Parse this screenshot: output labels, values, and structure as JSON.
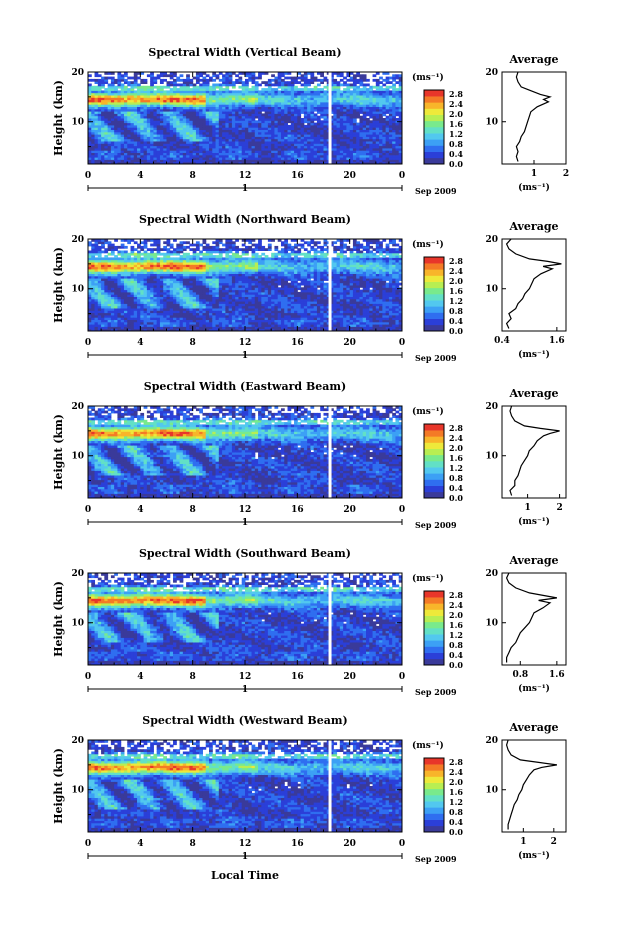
{
  "figure": {
    "xlabel": "Local Time",
    "date_label": "Sep 2009",
    "day_label": "1",
    "colorbar_unit": "(ms⁻¹)",
    "avg_title": "Average",
    "avg_unit": "(ms⁻¹)"
  },
  "colors": {
    "colormap": [
      "#3a3a9a",
      "#2b3fd8",
      "#2f6ef0",
      "#3ca0f5",
      "#52c8ef",
      "#62e0c6",
      "#79ea8c",
      "#b8ee52",
      "#eee93a",
      "#f8b52a",
      "#f47a26",
      "#e8362a"
    ],
    "gap": "#ffffff"
  },
  "chart_data": [
    {
      "type": "heatmap",
      "title": "Spectral Width (Vertical Beam)",
      "ylabel": "Height (km)",
      "xlim": [
        0,
        24
      ],
      "ylim": [
        1.5,
        20
      ],
      "xticks": [
        "0",
        "4",
        "8",
        "12",
        "16",
        "20",
        "0"
      ],
      "yticks": [
        "10",
        "20"
      ],
      "colorbar_ticks": [
        "2.8",
        "2.4",
        "2.0",
        "1.6",
        "1.2",
        "0.8",
        "0.4",
        "0.0"
      ],
      "gap_hour": 18.5,
      "average": {
        "xlim": [
          0,
          2
        ],
        "xticks": [
          "1",
          "2"
        ],
        "profile": [
          [
            0.5,
            2
          ],
          [
            0.45,
            3
          ],
          [
            0.5,
            4
          ],
          [
            0.45,
            5
          ],
          [
            0.55,
            6
          ],
          [
            0.6,
            7
          ],
          [
            0.7,
            8
          ],
          [
            0.75,
            9
          ],
          [
            0.8,
            10
          ],
          [
            0.85,
            11
          ],
          [
            0.9,
            12
          ],
          [
            1.1,
            13
          ],
          [
            1.45,
            14
          ],
          [
            1.3,
            14.5
          ],
          [
            1.5,
            15
          ],
          [
            1.2,
            15.5
          ],
          [
            1.0,
            16
          ],
          [
            0.8,
            16.5
          ],
          [
            0.6,
            17
          ],
          [
            0.5,
            18
          ],
          [
            0.45,
            19
          ],
          [
            0.5,
            20
          ]
        ]
      }
    },
    {
      "type": "heatmap",
      "title": "Spectral Width (Northward Beam)",
      "ylabel": "Height (km)",
      "xlim": [
        0,
        24
      ],
      "ylim": [
        1.5,
        20
      ],
      "xticks": [
        "0",
        "4",
        "8",
        "12",
        "16",
        "20",
        "0"
      ],
      "yticks": [
        "10",
        "20"
      ],
      "colorbar_ticks": [
        "2.8",
        "2.4",
        "2.0",
        "1.6",
        "1.2",
        "0.8",
        "0.4",
        "0.0"
      ],
      "gap_hour": 18.5,
      "average": {
        "xlim": [
          0.4,
          1.8
        ],
        "xticks": [
          "0.4",
          "1.6"
        ],
        "profile": [
          [
            0.55,
            2
          ],
          [
            0.5,
            3
          ],
          [
            0.6,
            4
          ],
          [
            0.55,
            5
          ],
          [
            0.7,
            6
          ],
          [
            0.75,
            7
          ],
          [
            0.85,
            8
          ],
          [
            0.9,
            9
          ],
          [
            1.0,
            10
          ],
          [
            1.05,
            11
          ],
          [
            1.1,
            12
          ],
          [
            1.25,
            13
          ],
          [
            1.5,
            14
          ],
          [
            1.3,
            14.5
          ],
          [
            1.7,
            15
          ],
          [
            1.4,
            15.5
          ],
          [
            1.0,
            16
          ],
          [
            0.7,
            17
          ],
          [
            0.55,
            18
          ],
          [
            0.5,
            19
          ],
          [
            0.6,
            20
          ]
        ]
      }
    },
    {
      "type": "heatmap",
      "title": "Spectral Width (Eastward Beam)",
      "ylabel": "Height (km)",
      "xlim": [
        0,
        24
      ],
      "ylim": [
        1.5,
        20
      ],
      "xticks": [
        "0",
        "4",
        "8",
        "12",
        "16",
        "20",
        "0"
      ],
      "yticks": [
        "10",
        "20"
      ],
      "colorbar_ticks": [
        "2.8",
        "2.4",
        "2.0",
        "1.6",
        "1.2",
        "0.8",
        "0.4",
        "0.0"
      ],
      "gap_hour": 18.5,
      "average": {
        "xlim": [
          0.2,
          2.2
        ],
        "xticks": [
          "1",
          "2"
        ],
        "profile": [
          [
            0.5,
            2
          ],
          [
            0.45,
            3
          ],
          [
            0.6,
            4
          ],
          [
            0.6,
            5
          ],
          [
            0.7,
            6
          ],
          [
            0.75,
            7
          ],
          [
            0.8,
            8
          ],
          [
            0.9,
            9
          ],
          [
            1.0,
            10
          ],
          [
            1.05,
            11
          ],
          [
            1.2,
            12
          ],
          [
            1.3,
            13
          ],
          [
            1.5,
            14
          ],
          [
            1.7,
            14.5
          ],
          [
            2.0,
            15
          ],
          [
            1.4,
            15.5
          ],
          [
            0.9,
            16
          ],
          [
            0.6,
            17
          ],
          [
            0.5,
            18
          ],
          [
            0.45,
            19
          ],
          [
            0.5,
            20
          ]
        ]
      }
    },
    {
      "type": "heatmap",
      "title": "Spectral Width (Southward Beam)",
      "ylabel": "Height (km)",
      "xlim": [
        0,
        24
      ],
      "ylim": [
        1.5,
        20
      ],
      "xticks": [
        "0",
        "4",
        "8",
        "12",
        "16",
        "20",
        "0"
      ],
      "yticks": [
        "10",
        "20"
      ],
      "colorbar_ticks": [
        "2.8",
        "2.4",
        "2.0",
        "1.6",
        "1.2",
        "0.8",
        "0.4",
        "0.0"
      ],
      "gap_hour": 18.5,
      "average": {
        "xlim": [
          0.4,
          1.8
        ],
        "xticks": [
          "0.8",
          "1.6"
        ],
        "profile": [
          [
            0.5,
            2
          ],
          [
            0.5,
            3
          ],
          [
            0.55,
            4
          ],
          [
            0.6,
            5
          ],
          [
            0.7,
            6
          ],
          [
            0.75,
            7
          ],
          [
            0.8,
            8
          ],
          [
            0.9,
            9
          ],
          [
            1.0,
            10
          ],
          [
            1.05,
            11
          ],
          [
            1.1,
            12
          ],
          [
            1.3,
            13
          ],
          [
            1.45,
            14
          ],
          [
            1.2,
            14.5
          ],
          [
            1.6,
            15
          ],
          [
            1.3,
            15.5
          ],
          [
            1.0,
            16
          ],
          [
            0.7,
            17
          ],
          [
            0.55,
            18
          ],
          [
            0.5,
            19
          ],
          [
            0.55,
            20
          ]
        ]
      }
    },
    {
      "type": "heatmap",
      "title": "Spectral Width (Westward Beam)",
      "ylabel": "Height (km)",
      "xlim": [
        0,
        24
      ],
      "ylim": [
        1.5,
        20
      ],
      "xticks": [
        "0",
        "4",
        "8",
        "12",
        "16",
        "20",
        "0"
      ],
      "yticks": [
        "10",
        "20"
      ],
      "colorbar_ticks": [
        "2.8",
        "2.4",
        "2.0",
        "1.6",
        "1.2",
        "0.8",
        "0.4",
        "0.0"
      ],
      "gap_hour": 18.5,
      "average": {
        "xlim": [
          0.3,
          2.4
        ],
        "xticks": [
          "1",
          "2"
        ],
        "profile": [
          [
            0.5,
            2
          ],
          [
            0.5,
            3
          ],
          [
            0.55,
            4
          ],
          [
            0.6,
            5
          ],
          [
            0.65,
            6
          ],
          [
            0.7,
            7
          ],
          [
            0.8,
            8
          ],
          [
            0.85,
            9
          ],
          [
            0.95,
            10
          ],
          [
            1.0,
            11
          ],
          [
            1.1,
            12
          ],
          [
            1.2,
            13
          ],
          [
            1.35,
            14
          ],
          [
            1.6,
            14.5
          ],
          [
            2.1,
            15
          ],
          [
            1.5,
            15.5
          ],
          [
            0.9,
            16
          ],
          [
            0.6,
            17
          ],
          [
            0.5,
            18
          ],
          [
            0.45,
            19
          ],
          [
            0.5,
            20
          ]
        ]
      }
    }
  ]
}
